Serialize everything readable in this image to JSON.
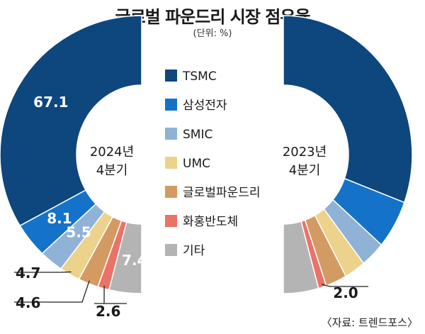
{
  "header": {
    "title": "글로벌 파운드리 시장 점유율",
    "unit": "(단위: %)",
    "source": "〈자료: 트렌드포스〉"
  },
  "chart_data": {
    "type": "pie",
    "categories": [
      "TSMC",
      "삼성전자",
      "SMIC",
      "UMC",
      "글로벌파운드리",
      "화홍반도체",
      "기타"
    ],
    "colors": [
      "#0e467e",
      "#1473c8",
      "#8fb2d6",
      "#ecd28b",
      "#d49a63",
      "#ea7368",
      "#b4b4b4"
    ],
    "series": [
      {
        "name": "2024년 4분기",
        "label_lines": [
          "2024년",
          "4분기"
        ],
        "values": [
          67.1,
          8.1,
          5.5,
          4.7,
          4.6,
          2.6,
          7.4
        ],
        "value_labels": [
          "67.1",
          "8.1",
          "5.5",
          "4.7",
          "4.6",
          "2.6",
          "7.4"
        ]
      },
      {
        "name": "2023년 4분기",
        "label_lines": [
          "2023년",
          "4분기"
        ],
        "values": [
          61.2,
          11.3,
          6.1,
          5.3,
          5.3,
          2.0,
          8.8
        ],
        "value_labels": [
          "",
          "",
          "",
          "",
          "",
          "2.0",
          ""
        ]
      }
    ]
  }
}
